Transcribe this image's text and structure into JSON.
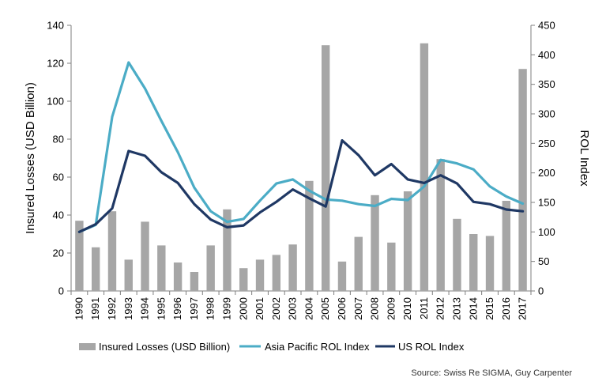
{
  "chart_data": {
    "type": "bar+line",
    "categories": [
      "1990",
      "1991",
      "1992",
      "1993",
      "1994",
      "1995",
      "1996",
      "1997",
      "1998",
      "1999",
      "2000",
      "2001",
      "2002",
      "2003",
      "2004",
      "2005",
      "2006",
      "2007",
      "2008",
      "2009",
      "2010",
      "2011",
      "2012",
      "2013",
      "2014",
      "2015",
      "2016",
      "2017"
    ],
    "series": [
      {
        "name": "Insured  Losses (USD Billion)",
        "type": "bar",
        "axis": "left",
        "color": "#a6a6a6",
        "values": [
          37,
          23,
          42,
          16.5,
          36.5,
          24,
          15,
          10,
          24,
          43,
          12,
          16.5,
          19,
          24.5,
          58,
          129.5,
          15.5,
          28.5,
          50.5,
          25.5,
          52.5,
          130.5,
          69.5,
          38,
          30,
          29,
          47.5,
          117
        ]
      },
      {
        "name": "Asia Pacific ROL  Index",
        "type": "line",
        "axis": "right",
        "color": "#4bacc6",
        "values": [
          100,
          112,
          295,
          387,
          343,
          288,
          235,
          175,
          135,
          117,
          122,
          153,
          182,
          189,
          170,
          155,
          153,
          147,
          144,
          156,
          154,
          177,
          222,
          216,
          206,
          177,
          160,
          148
        ]
      },
      {
        "name": "US ROL  Index",
        "type": "line",
        "axis": "right",
        "color": "#1f3864",
        "values": [
          100,
          113,
          140,
          237,
          229,
          201,
          183,
          147,
          121,
          108,
          111,
          133,
          151,
          172,
          157,
          143,
          255,
          230,
          196,
          215,
          189,
          183,
          196,
          182,
          151,
          147,
          138,
          135
        ]
      }
    ],
    "y_left": {
      "label": "Insured Losses (USD Billion)",
      "range": [
        0,
        140
      ],
      "ticks": [
        "0",
        "20",
        "40",
        "60",
        "80",
        "100",
        "120",
        "140"
      ]
    },
    "y_right": {
      "label": "ROL Index",
      "range": [
        0,
        450
      ],
      "ticks": [
        "0",
        "50",
        "100",
        "150",
        "200",
        "250",
        "300",
        "350",
        "400",
        "450"
      ]
    },
    "legend_position": "bottom",
    "grid": false,
    "source": "Source:  Swiss Re SIGMA, Guy Carpenter"
  }
}
